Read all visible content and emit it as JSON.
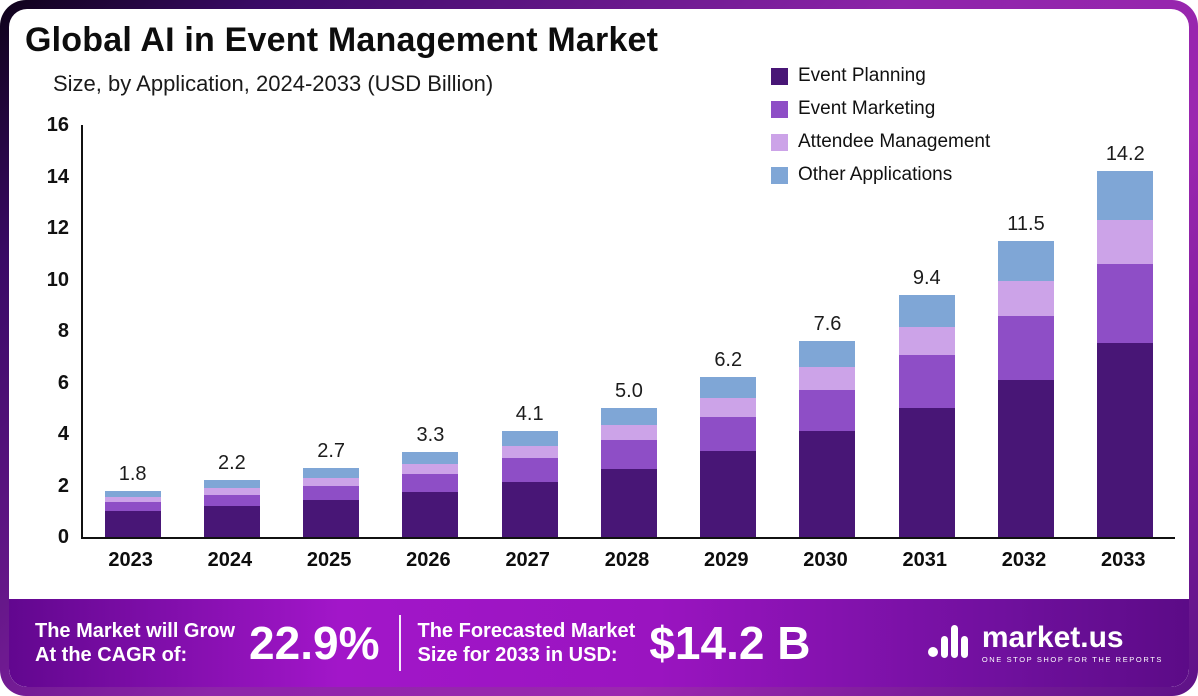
{
  "header": {
    "title": "Global AI in Event Management Market",
    "subtitle": "Size, by Application, 2024-2033 (USD Billion)"
  },
  "legend": {
    "items": [
      {
        "label": "Event Planning",
        "color": "#481676"
      },
      {
        "label": "Event Marketing",
        "color": "#8E4EC6"
      },
      {
        "label": "Attendee Management",
        "color": "#CCA3E8"
      },
      {
        "label": "Other Applications",
        "color": "#7FA6D6"
      }
    ]
  },
  "chart_data": {
    "type": "bar",
    "stacked": true,
    "title": "Global AI in Event Management Market Size, by Application, 2024-2033 (USD Billion)",
    "categories": [
      "2023",
      "2024",
      "2025",
      "2026",
      "2027",
      "2028",
      "2029",
      "2030",
      "2031",
      "2032",
      "2033"
    ],
    "series": [
      {
        "name": "Event Planning",
        "color": "#481676",
        "values": [
          1.0,
          1.2,
          1.45,
          1.75,
          2.15,
          2.65,
          3.35,
          4.1,
          5.0,
          6.1,
          7.55
        ]
      },
      {
        "name": "Event Marketing",
        "color": "#8E4EC6",
        "values": [
          0.35,
          0.45,
          0.55,
          0.7,
          0.9,
          1.1,
          1.3,
          1.6,
          2.05,
          2.5,
          3.05
        ]
      },
      {
        "name": "Attendee Management",
        "color": "#CCA3E8",
        "values": [
          0.2,
          0.25,
          0.3,
          0.4,
          0.5,
          0.6,
          0.75,
          0.9,
          1.1,
          1.35,
          1.7
        ]
      },
      {
        "name": "Other Applications",
        "color": "#7FA6D6",
        "values": [
          0.25,
          0.3,
          0.4,
          0.45,
          0.55,
          0.65,
          0.8,
          1.0,
          1.25,
          1.55,
          1.9
        ]
      }
    ],
    "totals": [
      "1.8",
      "2.2",
      "2.7",
      "3.3",
      "4.1",
      "5.0",
      "6.2",
      "7.6",
      "9.4",
      "11.5",
      "14.2"
    ],
    "ylim": [
      0,
      16
    ],
    "yticks": [
      0,
      2,
      4,
      6,
      8,
      10,
      12,
      14,
      16
    ],
    "grid": false,
    "legend_position": "top-right",
    "xlabel": "",
    "ylabel": "USD Billion"
  },
  "banner": {
    "cagr_label_line1": "The Market will Grow",
    "cagr_label_line2": "At the CAGR of:",
    "cagr_value": "22.9%",
    "forecast_label_line1": "The Forecasted Market",
    "forecast_label_line2": "Size for 2033 in USD:",
    "forecast_value": "$14.2 B",
    "brand_name": "market.us",
    "brand_tagline": "ONE STOP SHOP FOR THE REPORTS"
  }
}
